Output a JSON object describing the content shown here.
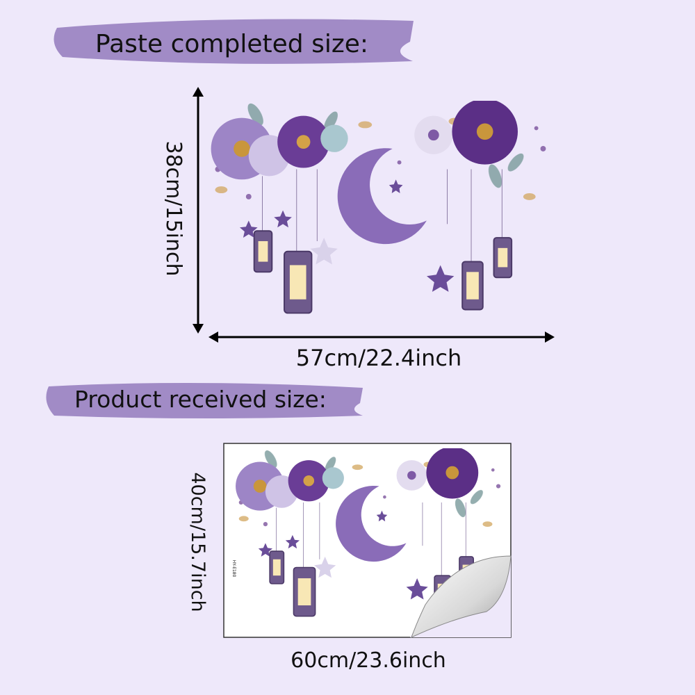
{
  "completed": {
    "heading": "Paste completed size:",
    "height": "38cm/15inch",
    "width": "57cm/22.4inch"
  },
  "received": {
    "heading": "Product received size:",
    "height": "40cm/15.7inch",
    "width": "60cm/23.6inch",
    "sheet_code": "HY-E180"
  }
}
